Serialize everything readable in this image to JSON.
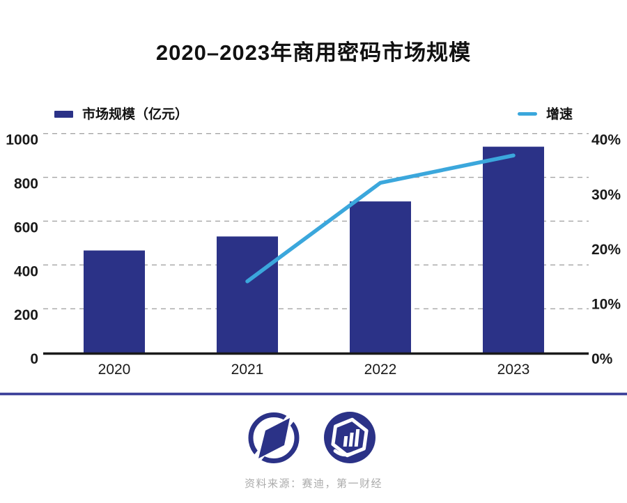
{
  "title": "2020–2023年商用密码市场规模",
  "legend": {
    "bars_label": "市场规模（亿元）",
    "line_label": "增速"
  },
  "footer": {
    "source": "资料来源：赛迪，第一财经"
  },
  "colors": {
    "bar": "#2B3287",
    "line": "#3BA7DC",
    "grid": "#A5A5A5",
    "axis": "#1A1A1A",
    "text": "#1A1A1A",
    "divider": "#3B3F99",
    "source_text": "#ABABAB",
    "logo": "#2B3287"
  },
  "chart_data": {
    "type": "bar+line",
    "categories": [
      "2020",
      "2021",
      "2022",
      "2023"
    ],
    "series": [
      {
        "name": "市场规模（亿元）",
        "type": "bar",
        "axis": "left",
        "values": [
          466,
          530,
          690,
          940
        ]
      },
      {
        "name": "增速",
        "type": "line",
        "axis": "right",
        "unit": "%",
        "values": [
          null,
          13,
          31,
          36
        ]
      }
    ],
    "left_axis": {
      "min": 0,
      "max": 1000,
      "step": 200,
      "ticks": [
        "0",
        "200",
        "400",
        "600",
        "800",
        "1000"
      ]
    },
    "right_axis": {
      "min": 0,
      "max": 40,
      "step": 10,
      "ticks": [
        "0%",
        "10%",
        "20%",
        "30%",
        "40%"
      ]
    },
    "grid": "horizontal dashed",
    "legend_position": "top"
  }
}
